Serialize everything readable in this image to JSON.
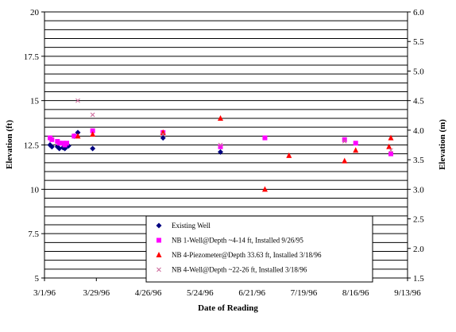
{
  "chart_data": {
    "type": "scatter",
    "xlabel": "Date of Reading",
    "ylabel": "Elevation (ft)",
    "y2label": "Elevation (m)",
    "x_tick_labels": [
      "3/1/96",
      "3/29/96",
      "4/26/96",
      "5/24/96",
      "6/21/96",
      "7/19/96",
      "8/16/96",
      "9/13/96"
    ],
    "x_ticks": [
      "1996-03-01",
      "1996-03-29",
      "1996-04-26",
      "1996-05-24",
      "1996-06-21",
      "1996-07-19",
      "1996-08-16",
      "1996-09-13"
    ],
    "xlim": [
      "1996-03-01",
      "1996-09-13"
    ],
    "ylim": [
      5,
      20
    ],
    "y_ticks": [
      5,
      7.5,
      10,
      12.5,
      15,
      17.5,
      20
    ],
    "y_tick_labels": [
      "5",
      "7.5",
      "10",
      "12.5",
      "15",
      "17.5",
      "20"
    ],
    "y2lim": [
      1.5,
      6.0
    ],
    "y2_ticks": [
      1.5,
      2.0,
      2.5,
      3.0,
      3.5,
      4.0,
      4.5,
      5.0,
      5.5,
      6.0
    ],
    "y2_tick_labels": [
      "1.5",
      "2.0",
      "2.5",
      "3.0",
      "3.5",
      "4.0",
      "4.5",
      "5.0",
      "5.5",
      "6.0"
    ],
    "horizontal_grid": true,
    "grid_step": 0.5,
    "legend_position": "bottom-right",
    "series": [
      {
        "name": "Existing Well",
        "marker": "diamond",
        "color": "#000080",
        "points": [
          [
            "1996-03-04",
            12.5
          ],
          [
            "1996-03-05",
            12.4
          ],
          [
            "1996-03-08",
            12.4
          ],
          [
            "1996-03-09",
            12.3
          ],
          [
            "1996-03-11",
            12.35
          ],
          [
            "1996-03-12",
            12.3
          ],
          [
            "1996-03-13",
            12.4
          ],
          [
            "1996-03-14",
            12.45
          ],
          [
            "1996-03-17",
            13.0
          ],
          [
            "1996-03-19",
            13.2
          ],
          [
            "1996-03-27",
            12.3
          ],
          [
            "1996-05-04",
            12.9
          ],
          [
            "1996-06-04",
            12.1
          ]
        ]
      },
      {
        "name": "NB 1-Well@Depth ~4-14 ft, Installed 9/26/95",
        "marker": "square",
        "color": "#ff00ff",
        "points": [
          [
            "1996-03-04",
            12.9
          ],
          [
            "1996-03-05",
            12.8
          ],
          [
            "1996-03-08",
            12.7
          ],
          [
            "1996-03-09",
            12.6
          ],
          [
            "1996-03-11",
            12.6
          ],
          [
            "1996-03-12",
            12.5
          ],
          [
            "1996-03-13",
            12.6
          ],
          [
            "1996-03-17",
            13.0
          ],
          [
            "1996-03-27",
            13.3
          ],
          [
            "1996-05-04",
            13.2
          ],
          [
            "1996-06-04",
            12.4
          ],
          [
            "1996-06-28",
            12.9
          ],
          [
            "1996-08-10",
            12.8
          ],
          [
            "1996-08-16",
            12.6
          ],
          [
            "1996-09-04",
            12.0
          ]
        ]
      },
      {
        "name": "NB 4-Piezometer@Depth 33.63 ft, Installed 3/18/96",
        "marker": "triangle",
        "color": "#ff0000",
        "points": [
          [
            "1996-03-19",
            13.0
          ],
          [
            "1996-03-27",
            13.1
          ],
          [
            "1996-05-04",
            13.2
          ],
          [
            "1996-06-04",
            14.0
          ],
          [
            "1996-06-28",
            10.0
          ],
          [
            "1996-07-11",
            11.9
          ],
          [
            "1996-08-10",
            11.6
          ],
          [
            "1996-08-16",
            12.2
          ],
          [
            "1996-09-03",
            12.4
          ],
          [
            "1996-09-04",
            12.9
          ]
        ]
      },
      {
        "name": "NB 4-Well@Depth ~22-26 ft, Installed 3/18/96",
        "marker": "x",
        "color": "#cc6699",
        "points": [
          [
            "1996-03-19",
            15.0
          ],
          [
            "1996-03-27",
            14.2
          ],
          [
            "1996-05-04",
            13.1
          ],
          [
            "1996-06-04",
            12.5
          ],
          [
            "1996-08-10",
            12.7
          ],
          [
            "1996-09-04",
            12.2
          ]
        ]
      }
    ]
  }
}
